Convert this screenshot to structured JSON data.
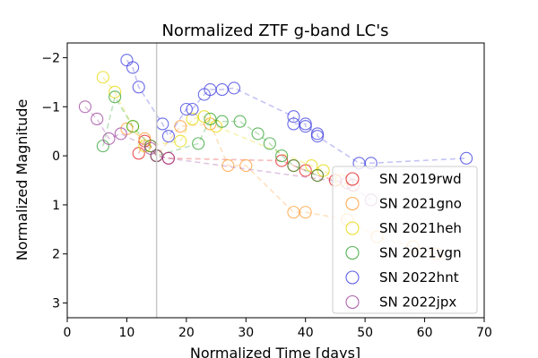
{
  "chart_data": {
    "type": "scatter",
    "title": "Normalized ZTF g-band LC's",
    "xlabel": "Normalized Time [days]",
    "ylabel": "Normalized Magnitude",
    "xlim": [
      0,
      70
    ],
    "ylim": [
      3.3,
      -2.3
    ],
    "y_inverted": true,
    "xticks": [
      0,
      10,
      20,
      30,
      40,
      50,
      60,
      70
    ],
    "yticks": [
      -2,
      -1,
      0,
      1,
      2,
      3
    ],
    "xtick_labels": [
      "0",
      "10",
      "20",
      "30",
      "40",
      "50",
      "60",
      "70"
    ],
    "ytick_labels": [
      "−2",
      "−1",
      "0",
      "1",
      "2",
      "3"
    ],
    "reference_line_x": 15,
    "grid": false,
    "legend_position": "lower-right",
    "series": [
      {
        "name": "SN 2019rwd",
        "color": "#e41a1c",
        "points": [
          [
            12,
            -0.05
          ],
          [
            13,
            -0.3
          ],
          [
            14,
            -0.2
          ],
          [
            15,
            0
          ],
          [
            17,
            0.05
          ],
          [
            36,
            0.1
          ],
          [
            38,
            0.2
          ],
          [
            40,
            0.3
          ],
          [
            42,
            0.4
          ],
          [
            45,
            0.5
          ],
          [
            48,
            0.6
          ]
        ]
      },
      {
        "name": "SN 2021gno",
        "color": "#ff9a2e",
        "points": [
          [
            10,
            -0.55
          ],
          [
            13,
            -0.35
          ],
          [
            15,
            0
          ],
          [
            19,
            -0.6
          ],
          [
            24,
            -0.65
          ],
          [
            27,
            0.2
          ],
          [
            30,
            0.2
          ],
          [
            38,
            1.15
          ],
          [
            40,
            1.15
          ],
          [
            47,
            1.3
          ],
          [
            52,
            1.65
          ],
          [
            58,
            1.85
          ],
          [
            62,
            2.0
          ]
        ]
      },
      {
        "name": "SN 2021heh",
        "color": "#e6d800",
        "points": [
          [
            6,
            -1.6
          ],
          [
            8,
            -1.3
          ],
          [
            11,
            -0.6
          ],
          [
            13,
            -0.2
          ],
          [
            19,
            -0.3
          ],
          [
            21,
            -0.75
          ],
          [
            23,
            -0.8
          ],
          [
            25,
            -0.6
          ],
          [
            41,
            0.2
          ],
          [
            43,
            0.3
          ],
          [
            46,
            0.5
          ]
        ]
      },
      {
        "name": "SN 2021vgn",
        "color": "#2ca02c",
        "points": [
          [
            6,
            -0.2
          ],
          [
            8,
            -1.2
          ],
          [
            11,
            -0.6
          ],
          [
            14,
            -0.2
          ],
          [
            15,
            0
          ],
          [
            22,
            -0.25
          ],
          [
            24,
            -0.75
          ],
          [
            26,
            -0.7
          ],
          [
            29,
            -0.7
          ],
          [
            32,
            -0.45
          ],
          [
            34,
            -0.25
          ],
          [
            36,
            0
          ],
          [
            38,
            0.2
          ],
          [
            42,
            0.4
          ]
        ]
      },
      {
        "name": "SN 2022hnt",
        "color": "#3a3ae0",
        "points": [
          [
            10,
            -1.95
          ],
          [
            11,
            -1.8
          ],
          [
            12,
            -1.4
          ],
          [
            16,
            -0.65
          ],
          [
            17,
            -0.4
          ],
          [
            20,
            -0.95
          ],
          [
            21,
            -0.95
          ],
          [
            23,
            -1.25
          ],
          [
            24,
            -1.35
          ],
          [
            26,
            -1.35
          ],
          [
            28,
            -1.38
          ],
          [
            38,
            -0.8
          ],
          [
            38,
            -0.65
          ],
          [
            40,
            -0.65
          ],
          [
            40,
            -0.6
          ],
          [
            42,
            -0.45
          ],
          [
            42,
            -0.4
          ],
          [
            49,
            0.15
          ],
          [
            51,
            0.15
          ],
          [
            67,
            0.05
          ]
        ]
      },
      {
        "name": "SN 2022jpx",
        "color": "#9b3f9b",
        "points": [
          [
            3,
            -1.0
          ],
          [
            5,
            -0.75
          ],
          [
            7,
            -0.35
          ],
          [
            9,
            -0.45
          ],
          [
            14,
            -0.15
          ],
          [
            15,
            0
          ],
          [
            17,
            0.05
          ],
          [
            47,
            0.55
          ],
          [
            51,
            0.9
          ]
        ]
      }
    ]
  }
}
